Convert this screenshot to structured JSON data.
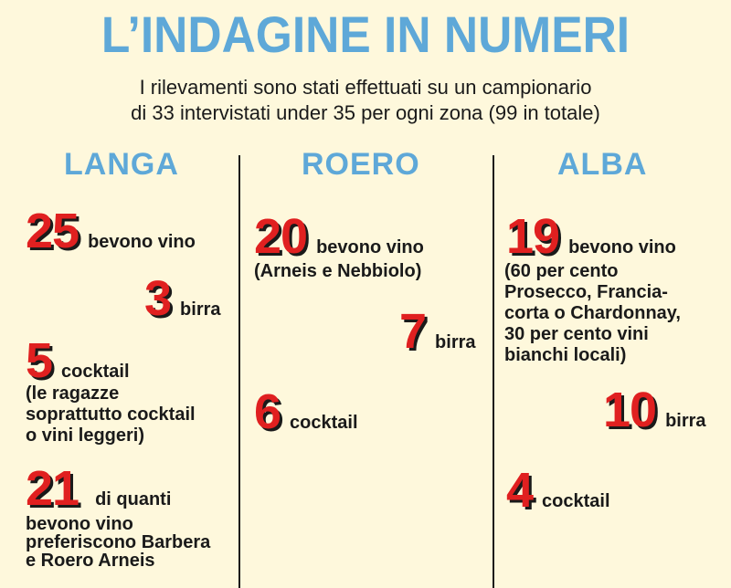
{
  "title": "L’INDAGINE IN NUMERI",
  "subtitle": {
    "line1": "I rilevamenti sono stati effettuati su un campionario",
    "line2": "di 33 intervistati under 35 per ogni zona (99 in totale)"
  },
  "colors": {
    "heading": "#5ea8d8",
    "number": "#e02020",
    "background": "#fef8dc",
    "text": "#1a1a1a"
  },
  "zones": {
    "langa": {
      "name": "LANGA",
      "wine": {
        "value": "25",
        "label": "bevono vino"
      },
      "beer": {
        "value": "3",
        "label": "birra"
      },
      "cocktail": {
        "value": "5",
        "label": "cocktail",
        "note1": "(le ragazze",
        "note2": "soprattutto cocktail",
        "note3": "o vini leggeri)"
      },
      "barbera": {
        "value": "21",
        "label": "di quanti",
        "note1": "bevono vino",
        "note2": "preferiscono Barbera",
        "note3": "e Roero Arneis"
      }
    },
    "roero": {
      "name": "ROERO",
      "wine": {
        "value": "20",
        "label": "bevono vino",
        "note1": "(Arneis e Nebbiolo)"
      },
      "beer": {
        "value": "7",
        "label": "birra"
      },
      "cocktail": {
        "value": "6",
        "label": "cocktail"
      }
    },
    "alba": {
      "name": "ALBA",
      "wine": {
        "value": "19",
        "label": "bevono vino",
        "note1": "(60 per cento",
        "note2": "Prosecco, Francia-",
        "note3": "corta o Chardonnay,",
        "note4": "30 per cento vini",
        "note5": "bianchi locali)"
      },
      "beer": {
        "value": "10",
        "label": "birra"
      },
      "cocktail": {
        "value": "4",
        "label": "cocktail"
      }
    }
  }
}
